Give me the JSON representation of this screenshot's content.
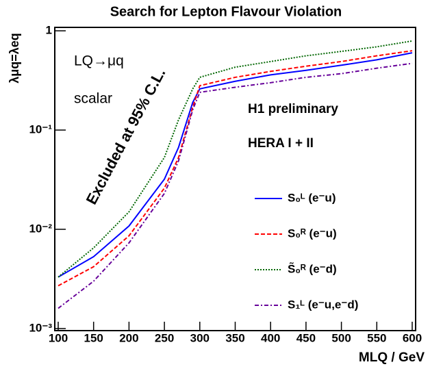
{
  "chart_data": {
    "type": "line",
    "title": "Search for Lepton Flavour Violation",
    "xlabel": "MLQ / GeV",
    "ylabel": "λμq=λeq",
    "annotations": [
      "LQ→μq",
      "scalar",
      "Excluded at 95% C.L.",
      "H1 preliminary",
      "HERA I + II"
    ],
    "x": [
      100,
      150,
      200,
      250,
      270,
      290,
      300,
      350,
      400,
      450,
      500,
      550,
      600
    ],
    "series": [
      {
        "name": "S₀ᴸ (e⁻u)",
        "color": "#0000ff",
        "dash": "solid",
        "values": [
          0.0033,
          0.0053,
          0.0108,
          0.032,
          0.067,
          0.19,
          0.26,
          0.31,
          0.36,
          0.4,
          0.45,
          0.51,
          0.6
        ]
      },
      {
        "name": "S₀ᴿ (e⁻u)",
        "color": "#ff0000",
        "dash": "dashed",
        "values": [
          0.0027,
          0.0042,
          0.0086,
          0.026,
          0.053,
          0.17,
          0.28,
          0.34,
          0.39,
          0.44,
          0.49,
          0.56,
          0.63
        ]
      },
      {
        "name": "S̃₀ᴿ (e⁻d)",
        "color": "#006600",
        "dash": "dotted",
        "values": [
          0.0033,
          0.0065,
          0.015,
          0.053,
          0.127,
          0.26,
          0.34,
          0.43,
          0.49,
          0.56,
          0.62,
          0.69,
          0.79
        ]
      },
      {
        "name": "S₁ᴸ (e⁻u,e⁻d)",
        "color": "#660099",
        "dash": "dashdot",
        "values": [
          0.0016,
          0.003,
          0.0073,
          0.023,
          0.049,
          0.16,
          0.24,
          0.27,
          0.3,
          0.34,
          0.37,
          0.42,
          0.47
        ]
      }
    ],
    "xlim": [
      100,
      600
    ],
    "xticks": [
      100,
      150,
      200,
      250,
      300,
      350,
      400,
      450,
      500,
      550,
      600
    ],
    "ylim": [
      0.001,
      1
    ],
    "yticks": [
      {
        "value": 0.001,
        "label": "10⁻³"
      },
      {
        "value": 0.01,
        "label": "10⁻²"
      },
      {
        "value": 0.1,
        "label": "10⁻¹"
      },
      1
    ],
    "log_y": true,
    "legend": "lower right"
  }
}
